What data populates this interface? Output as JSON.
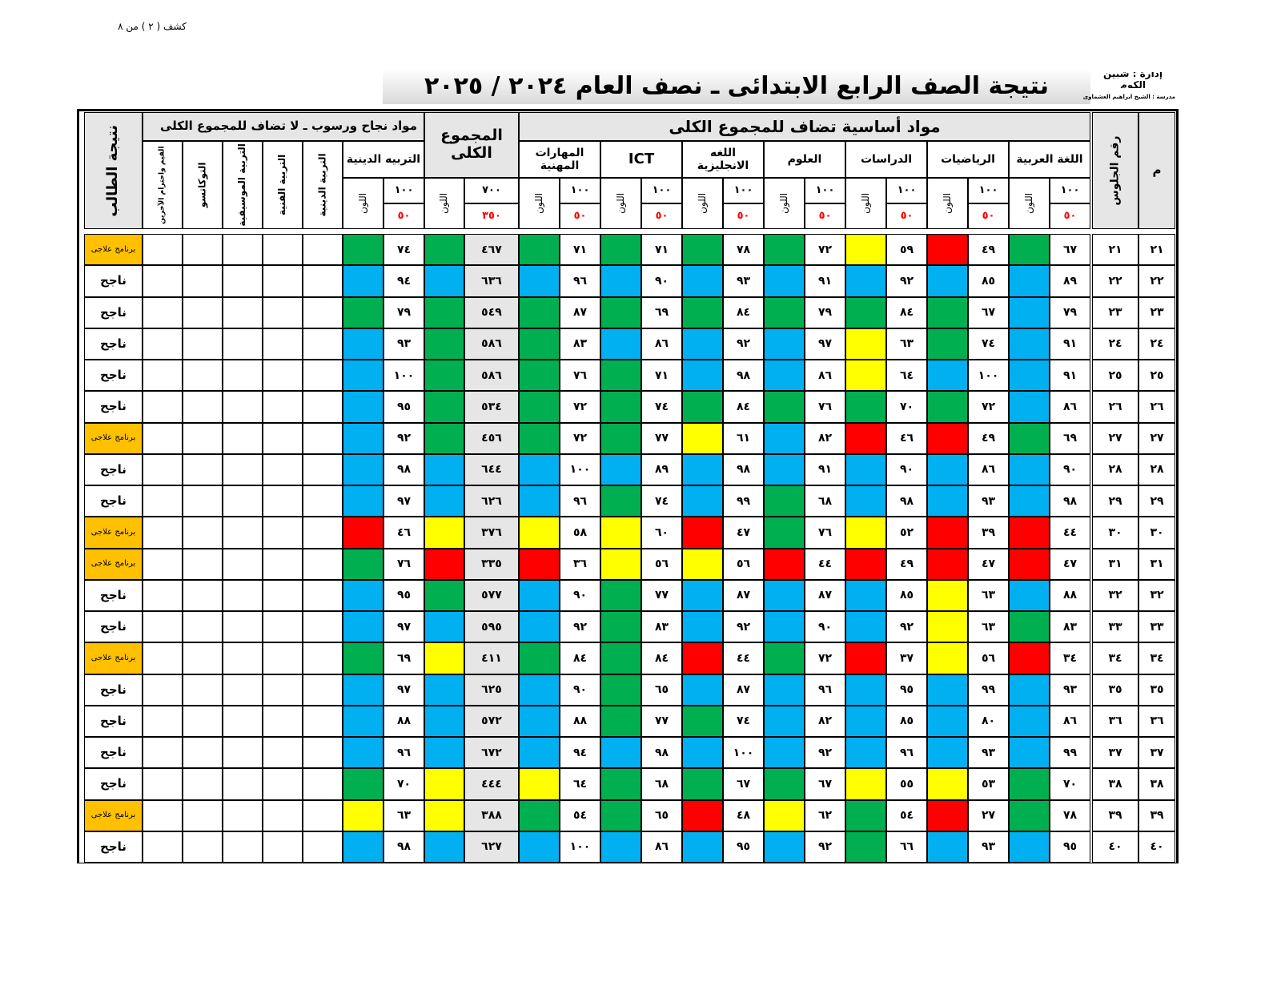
{
  "page_label": "كشف ( ٢ ) من ٨",
  "header": {
    "admin": "إدارة :  شبين الكوم",
    "school": "مدرسة : الشيخ ابراهيم العشماوى",
    "title": "نتيجة الصف الرابع الابتدائى ـ نصف العام ٢٠٢٤ / ٢٠٢٥"
  },
  "table": {
    "num_header": "م",
    "seat_header": "رقم الجلوس",
    "group_added": "مواد أساسية تضاف للمجموع الكلى",
    "group_total": "المجموع الكلى",
    "group_pass": "مواد نجاح ورسوب ـ لا تضاف للمجموع الكلى",
    "result_header": "نتيجة الطالب",
    "color_label": "اللون",
    "subjects": [
      {
        "name": "اللغة العربية",
        "max": "١٠٠",
        "min": "٥٠"
      },
      {
        "name": "الرياضيات",
        "max": "١٠٠",
        "min": "٥٠"
      },
      {
        "name": "الدراسات",
        "max": "١٠٠",
        "min": "٥٠"
      },
      {
        "name": "العلوم",
        "max": "١٠٠",
        "min": "٥٠"
      },
      {
        "name": "اللغه الانجليزية",
        "max": "١٠٠",
        "min": "٥٠"
      },
      {
        "name": "ICT",
        "max": "١٠٠",
        "min": "٥٠"
      },
      {
        "name": "المهارات المهنية",
        "max": "١٠٠",
        "min": "٥٠"
      }
    ],
    "total": {
      "max": "٧٠٠",
      "min": "٣٥٠"
    },
    "pass_subject": {
      "name": "التربيه الدينية",
      "max": "١٠٠",
      "min": "٥٠"
    },
    "other_subjects": [
      "التربية الدينية",
      "التربية الفنية",
      "التربية الموسيقية",
      "التوكاتسو",
      "القيم واحترام الآخرين"
    ],
    "rows": [
      {
        "num": "٢١",
        "seat": "٢١",
        "scores": [
          "٦٧",
          "٤٩",
          "٥٩",
          "٧٢",
          "٧٨",
          "٧١",
          "٧١",
          "٤٦٧",
          "٧٤"
        ],
        "colors": [
          "#00b050",
          "#ff0000",
          "#ffff00",
          "#00b050",
          "#00b050",
          "#00b050",
          "#00b050",
          "#00b050",
          "#00b050"
        ],
        "result": "برنامج علاجى"
      },
      {
        "num": "٢٢",
        "seat": "٢٢",
        "scores": [
          "٨٩",
          "٨٥",
          "٩٢",
          "٩١",
          "٩٣",
          "٩٠",
          "٩٦",
          "٦٣٦",
          "٩٤"
        ],
        "colors": [
          "#00b0f0",
          "#00b0f0",
          "#00b0f0",
          "#00b0f0",
          "#00b0f0",
          "#00b0f0",
          "#00b0f0",
          "#00b0f0",
          "#00b0f0"
        ],
        "result": "ناجح"
      },
      {
        "num": "٢٣",
        "seat": "٢٣",
        "scores": [
          "٧٩",
          "٦٧",
          "٨٤",
          "٧٩",
          "٨٤",
          "٦٩",
          "٨٧",
          "٥٤٩",
          "٧٩"
        ],
        "colors": [
          "#00b0f0",
          "#00b050",
          "#00b050",
          "#00b050",
          "#00b050",
          "#00b050",
          "#00b050",
          "#00b050",
          "#00b050"
        ],
        "result": "ناجح"
      },
      {
        "num": "٢٤",
        "seat": "٢٤",
        "scores": [
          "٩١",
          "٧٤",
          "٦٣",
          "٩٧",
          "٩٢",
          "٨٦",
          "٨٣",
          "٥٨٦",
          "٩٣"
        ],
        "colors": [
          "#00b0f0",
          "#00b050",
          "#ffff00",
          "#00b0f0",
          "#00b0f0",
          "#00b0f0",
          "#00b050",
          "#00b050",
          "#00b0f0"
        ],
        "result": "ناجح"
      },
      {
        "num": "٢٥",
        "seat": "٢٥",
        "scores": [
          "٩١",
          "١٠٠",
          "٦٤",
          "٨٦",
          "٩٨",
          "٧١",
          "٧٦",
          "٥٨٦",
          "١٠٠"
        ],
        "colors": [
          "#00b0f0",
          "#00b0f0",
          "#ffff00",
          "#00b0f0",
          "#00b0f0",
          "#00b050",
          "#00b050",
          "#00b050",
          "#00b0f0"
        ],
        "result": "ناجح"
      },
      {
        "num": "٢٦",
        "seat": "٢٦",
        "scores": [
          "٨٦",
          "٧٢",
          "٧٠",
          "٧٦",
          "٨٤",
          "٧٤",
          "٧٢",
          "٥٣٤",
          "٩٥"
        ],
        "colors": [
          "#00b0f0",
          "#00b050",
          "#00b050",
          "#00b050",
          "#00b050",
          "#00b050",
          "#00b050",
          "#00b050",
          "#00b0f0"
        ],
        "result": "ناجح"
      },
      {
        "num": "٢٧",
        "seat": "٢٧",
        "scores": [
          "٦٩",
          "٤٩",
          "٤٦",
          "٨٢",
          "٦١",
          "٧٧",
          "٧٢",
          "٤٥٦",
          "٩٢"
        ],
        "colors": [
          "#00b050",
          "#ff0000",
          "#ff0000",
          "#00b0f0",
          "#ffff00",
          "#00b050",
          "#00b050",
          "#00b050",
          "#00b0f0"
        ],
        "result": "برنامج علاجى"
      },
      {
        "num": "٢٨",
        "seat": "٢٨",
        "scores": [
          "٩٠",
          "٨٦",
          "٩٠",
          "٩١",
          "٩٨",
          "٨٩",
          "١٠٠",
          "٦٤٤",
          "٩٨"
        ],
        "colors": [
          "#00b0f0",
          "#00b0f0",
          "#00b0f0",
          "#00b0f0",
          "#00b0f0",
          "#00b0f0",
          "#00b0f0",
          "#00b0f0",
          "#00b0f0"
        ],
        "result": "ناجح"
      },
      {
        "num": "٢٩",
        "seat": "٢٩",
        "scores": [
          "٩٨",
          "٩٣",
          "٩٨",
          "٦٨",
          "٩٩",
          "٧٤",
          "٩٦",
          "٦٢٦",
          "٩٧"
        ],
        "colors": [
          "#00b0f0",
          "#00b0f0",
          "#00b0f0",
          "#00b050",
          "#00b0f0",
          "#00b050",
          "#00b0f0",
          "#00b0f0",
          "#00b0f0"
        ],
        "result": "ناجح"
      },
      {
        "num": "٣٠",
        "seat": "٣٠",
        "scores": [
          "٤٤",
          "٣٩",
          "٥٢",
          "٧٦",
          "٤٧",
          "٦٠",
          "٥٨",
          "٣٧٦",
          "٤٦"
        ],
        "colors": [
          "#ff0000",
          "#ff0000",
          "#ffff00",
          "#00b050",
          "#ff0000",
          "#ffff00",
          "#ffff00",
          "#ffff00",
          "#ff0000"
        ],
        "result": "برنامج علاجى"
      },
      {
        "num": "٣١",
        "seat": "٣١",
        "scores": [
          "٤٧",
          "٤٧",
          "٤٩",
          "٤٤",
          "٥٦",
          "٥٦",
          "٣٦",
          "٣٣٥",
          "٧٦"
        ],
        "colors": [
          "#ff0000",
          "#ff0000",
          "#ff0000",
          "#ff0000",
          "#ffff00",
          "#ffff00",
          "#ff0000",
          "#ff0000",
          "#00b050"
        ],
        "result": "برنامج علاجى"
      },
      {
        "num": "٣٢",
        "seat": "٣٢",
        "scores": [
          "٨٨",
          "٦٣",
          "٨٥",
          "٨٧",
          "٨٧",
          "٧٧",
          "٩٠",
          "٥٧٧",
          "٩٥"
        ],
        "colors": [
          "#00b0f0",
          "#ffff00",
          "#00b0f0",
          "#00b0f0",
          "#00b0f0",
          "#00b050",
          "#00b0f0",
          "#00b050",
          "#00b0f0"
        ],
        "result": "ناجح"
      },
      {
        "num": "٣٣",
        "seat": "٣٣",
        "scores": [
          "٨٣",
          "٦٣",
          "٩٢",
          "٩٠",
          "٩٢",
          "٨٣",
          "٩٢",
          "٥٩٥",
          "٩٧"
        ],
        "colors": [
          "#00b050",
          "#ffff00",
          "#00b0f0",
          "#00b0f0",
          "#00b0f0",
          "#00b050",
          "#00b0f0",
          "#00b0f0",
          "#00b0f0"
        ],
        "result": "ناجح"
      },
      {
        "num": "٣٤",
        "seat": "٣٤",
        "scores": [
          "٣٤",
          "٥٦",
          "٣٧",
          "٧٢",
          "٤٤",
          "٨٤",
          "٨٤",
          "٤١١",
          "٦٩"
        ],
        "colors": [
          "#ff0000",
          "#ffff00",
          "#ff0000",
          "#00b050",
          "#ff0000",
          "#00b050",
          "#00b050",
          "#ffff00",
          "#00b050"
        ],
        "result": "برنامج علاجى"
      },
      {
        "num": "٣٥",
        "seat": "٣٥",
        "scores": [
          "٩٣",
          "٩٩",
          "٩٥",
          "٩٦",
          "٨٧",
          "٦٥",
          "٩٠",
          "٦٢٥",
          "٩٧"
        ],
        "colors": [
          "#00b0f0",
          "#00b0f0",
          "#00b0f0",
          "#00b0f0",
          "#00b0f0",
          "#00b050",
          "#00b0f0",
          "#00b0f0",
          "#00b0f0"
        ],
        "result": "ناجح"
      },
      {
        "num": "٣٦",
        "seat": "٣٦",
        "scores": [
          "٨٦",
          "٨٠",
          "٨٥",
          "٨٢",
          "٧٤",
          "٧٧",
          "٨٨",
          "٥٧٢",
          "٨٨"
        ],
        "colors": [
          "#00b0f0",
          "#00b0f0",
          "#00b0f0",
          "#00b0f0",
          "#00b050",
          "#00b050",
          "#00b0f0",
          "#00b0f0",
          "#00b0f0"
        ],
        "result": "ناجح"
      },
      {
        "num": "٣٧",
        "seat": "٣٧",
        "scores": [
          "٩٩",
          "٩٣",
          "٩٦",
          "٩٢",
          "١٠٠",
          "٩٨",
          "٩٤",
          "٦٧٢",
          "٩٦"
        ],
        "colors": [
          "#00b0f0",
          "#00b0f0",
          "#00b0f0",
          "#00b0f0",
          "#00b0f0",
          "#00b0f0",
          "#00b0f0",
          "#00b0f0",
          "#00b0f0"
        ],
        "result": "ناجح"
      },
      {
        "num": "٣٨",
        "seat": "٣٨",
        "scores": [
          "٧٠",
          "٥٣",
          "٥٥",
          "٦٧",
          "٦٧",
          "٦٨",
          "٦٤",
          "٤٤٤",
          "٧٠"
        ],
        "colors": [
          "#00b050",
          "#ffff00",
          "#ffff00",
          "#00b050",
          "#00b050",
          "#00b050",
          "#ffff00",
          "#ffff00",
          "#00b050"
        ],
        "result": "ناجح"
      },
      {
        "num": "٣٩",
        "seat": "٣٩",
        "scores": [
          "٧٨",
          "٢٧",
          "٥٤",
          "٦٢",
          "٤٨",
          "٦٥",
          "٥٤",
          "٣٨٨",
          "٦٣"
        ],
        "colors": [
          "#00b050",
          "#ff0000",
          "#00b050",
          "#ffff00",
          "#ff0000",
          "#00b050",
          "#00b050",
          "#ffff00",
          "#ffff00"
        ],
        "result": "برنامج علاجى"
      },
      {
        "num": "٤٠",
        "seat": "٤٠",
        "scores": [
          "٩٥",
          "٩٣",
          "٦٦",
          "٩٢",
          "٩٥",
          "٨٦",
          "١٠٠",
          "٦٢٧",
          "٩٨"
        ],
        "colors": [
          "#00b0f0",
          "#00b0f0",
          "#00b050",
          "#00b0f0",
          "#00b0f0",
          "#00b0f0",
          "#00b0f0",
          "#00b0f0",
          "#00b0f0"
        ],
        "result": "ناجح"
      }
    ]
  }
}
